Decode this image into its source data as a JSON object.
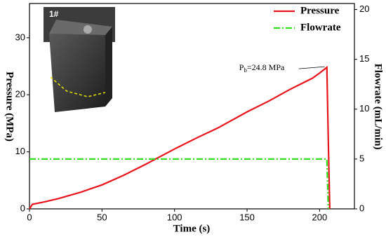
{
  "chart_data": {
    "type": "line",
    "xlabel": "Time (s)",
    "ylabel": "Pressure (MPa)",
    "y2label": "Flowrate  (mL/min)",
    "xlim": [
      0,
      224
    ],
    "xticks": [
      0,
      50,
      100,
      150,
      200
    ],
    "ylim": [
      0,
      36
    ],
    "yticks": [
      0,
      10,
      20,
      30
    ],
    "y2lim": [
      0,
      20.6
    ],
    "y2ticks": [
      0,
      5,
      10,
      15,
      20
    ],
    "legend": "upper right",
    "inset_label": "1#",
    "annotation": [
      "P",
      "b",
      "=24.8 MPa"
    ],
    "annotation_point": [
      205,
      24.8
    ],
    "series": [
      {
        "name": "Pressure",
        "color": "#e8141c",
        "x": [
          0,
          2,
          10,
          20,
          35,
          50,
          65,
          80,
          100,
          115,
          130,
          150,
          165,
          180,
          195,
          200,
          205,
          206,
          207
        ],
        "values": [
          0,
          0.8,
          1.2,
          1.8,
          2.9,
          4.2,
          5.9,
          7.8,
          10.5,
          12.4,
          14.2,
          17,
          18.9,
          21,
          22.9,
          23.8,
          24.8,
          12,
          0
        ]
      },
      {
        "name": "Flowrate",
        "color": "#33dd22",
        "axis": "y2",
        "x": [
          0,
          205,
          206
        ],
        "values": [
          5,
          5,
          0
        ]
      }
    ]
  }
}
